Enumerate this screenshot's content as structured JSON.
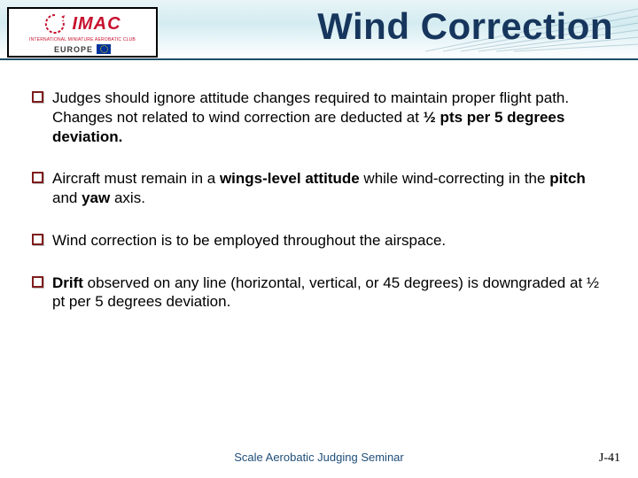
{
  "title": "Wind Correction",
  "logo": {
    "main": "IMAC",
    "sub": "INTERNATIONAL MINIATURE AEROBATIC CLUB",
    "region": "EUROPE",
    "swirl_color": "#c8102e",
    "text_color": "#c8102e"
  },
  "header": {
    "gradient_top": "#e8f4f7",
    "gradient_mid": "#d4ecf1",
    "underline_color": "#1a4d66",
    "title_color": "#17365d"
  },
  "bullets": [
    {
      "html": "Judges should ignore attitude changes required to maintain proper flight path.  Changes not related to wind correction are deducted at <b>½ pts per 5 degrees deviation.</b>"
    },
    {
      "html": "Aircraft must remain in a <b>wings-level attitude</b> while wind-correcting in the <b>pitch</b> and <b>yaw</b> axis."
    },
    {
      "html": "Wind correction is to be employed throughout the airspace."
    },
    {
      "html": "<b>Drift</b> observed on any line (horizontal, vertical, or 45 degrees) is downgraded at  ½ pt per 5 degrees deviation."
    }
  ],
  "bullet_box_border": "#7f1d1d",
  "footer": {
    "seminar": "Scale Aerobatic Judging Seminar",
    "seminar_color": "#1f4e79",
    "page": "J-41"
  }
}
